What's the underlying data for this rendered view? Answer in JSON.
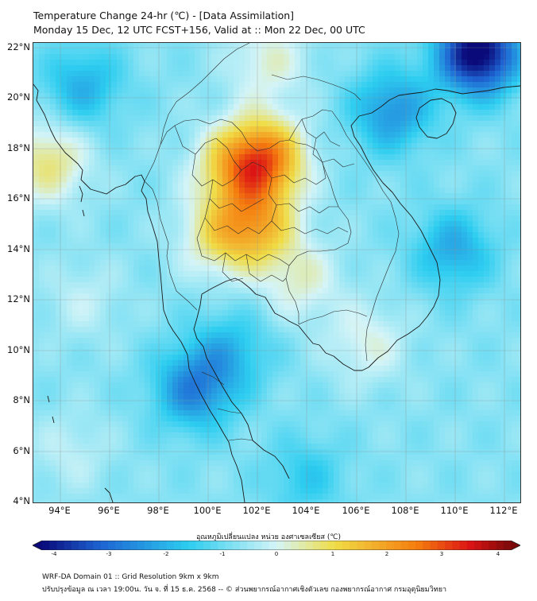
{
  "title_line1": "Temperature Change 24-hr (℃) - [Data Assimilation]",
  "title_line2": "Monday 15 Dec, 12 UTC FCST+156, Valid at :: Mon 22 Dec, 00 UTC",
  "y_labels": [
    "22°N",
    "20°N",
    "18°N",
    "16°N",
    "14°N",
    "12°N",
    "10°N",
    "8°N",
    "6°N",
    "4°N"
  ],
  "x_labels": [
    "94°E",
    "96°E",
    "98°E",
    "100°E",
    "102°E",
    "104°E",
    "106°E",
    "108°E",
    "110°E",
    "112°E"
  ],
  "colorbar": {
    "title": "อุณหภูมิเปลี่ยนแปลง หน่วย องศาเซลเซียส (℃)",
    "labels": [
      "-4",
      "-3",
      "-2",
      "-1",
      "0",
      "1",
      "2",
      "3",
      "4"
    ],
    "min": -4,
    "max": 4
  },
  "footer_line1": "WRF-DA Domain 01 :: Grid Resolution 9km x 9km",
  "footer_line2": "ปรับปรุงข้อมูล ณ เวลา 19:00น. วัน จ. ที่ 15 ธ.ค. 2568 -- © ส่วนพยากรณ์อากาศเชิงตัวเลข กองพยากรณ์อากาศ กรมอุตุนิยมวิทยา",
  "colors": {
    "cold_extreme": "#0a0a7a",
    "cold": "#1e64d2",
    "neutral_cyan": "#2dcdf0",
    "neutral_light": "#d4f4f7",
    "warm_yellow": "#f0dc46",
    "warm_orange": "#f57d0f",
    "hot": "#dc1414"
  },
  "field_regions": [
    {
      "name": "north-thailand-warm",
      "lon": 101.0,
      "lat": 17.2,
      "value": 1.3
    },
    {
      "name": "northeast-thailand-hot",
      "lon": 102.3,
      "lat": 17.6,
      "value": 3.0
    },
    {
      "name": "korat-warm",
      "lon": 102.0,
      "lat": 15.0,
      "value": 2.0
    },
    {
      "name": "central-thailand-warm",
      "lon": 100.5,
      "lat": 14.5,
      "value": 1.2
    },
    {
      "name": "cambodia-warm",
      "lon": 103.8,
      "lat": 12.8,
      "value": 0.9
    },
    {
      "name": "south-vietnam-warm",
      "lon": 106.5,
      "lat": 10.3,
      "value": 0.8
    },
    {
      "name": "myanmar-west-warm",
      "lon": 93.6,
      "lat": 17.5,
      "value": 1.4
    },
    {
      "name": "yunnan-warm",
      "lon": 102.5,
      "lat": 21.5,
      "value": 0.9
    },
    {
      "name": "andaman-warm",
      "lon": 95.0,
      "lat": 12.0,
      "value": 0.5
    },
    {
      "name": "southwest-sea-warm",
      "lon": 94.5,
      "lat": 6.0,
      "value": 0.5
    },
    {
      "name": "gulf-of-tonkin-cool",
      "lon": 107.5,
      "lat": 19.5,
      "value": -1.6
    },
    {
      "name": "south-china-cold",
      "lon": 111.0,
      "lat": 21.8,
      "value": -3.6
    },
    {
      "name": "south-china-sea-cool",
      "lon": 110.0,
      "lat": 14.0,
      "value": -1.3
    },
    {
      "name": "andaman-coast-cool",
      "lon": 99.5,
      "lat": 8.5,
      "value": -1.8
    },
    {
      "name": "thai-gulf-cool",
      "lon": 101.0,
      "lat": 10.0,
      "value": -1.0
    },
    {
      "name": "bay-of-bengal-cool",
      "lon": 95.0,
      "lat": 20.5,
      "value": -1.2
    },
    {
      "name": "south-sea-cool",
      "lon": 104.0,
      "lat": 5.0,
      "value": -0.8
    }
  ]
}
